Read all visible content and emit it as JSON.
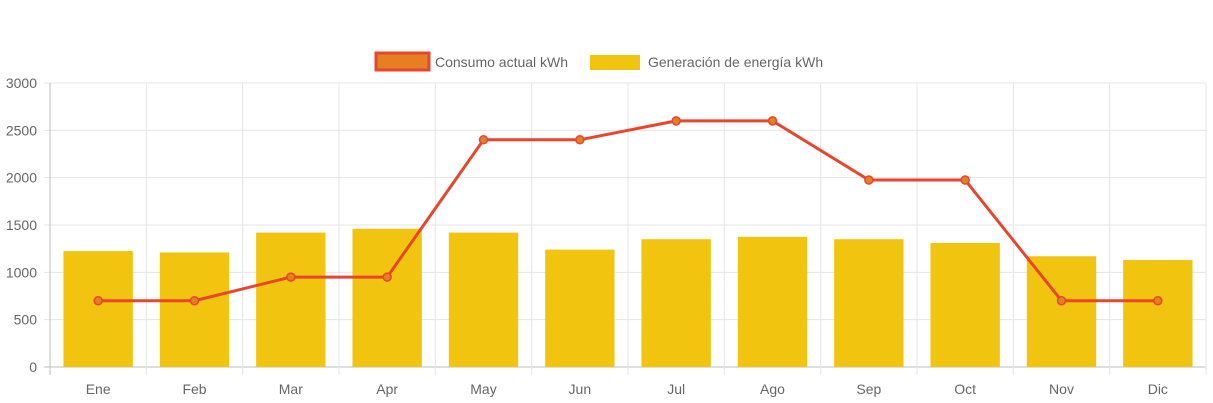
{
  "chart_data": {
    "type": "bar",
    "categories": [
      "Ene",
      "Feb",
      "Mar",
      "Apr",
      "May",
      "Jun",
      "Jul",
      "Ago",
      "Sep",
      "Oct",
      "Nov",
      "Dic"
    ],
    "series": [
      {
        "name": "Consumo actual kWh",
        "type": "line",
        "color": "#e8452c",
        "point_color": "#e67e22",
        "values": [
          700,
          700,
          950,
          950,
          2400,
          2400,
          2600,
          2600,
          1975,
          1975,
          700,
          700
        ]
      },
      {
        "name": "Generación de energía kWh",
        "type": "bar",
        "color": "#f1c40f",
        "values": [
          1225,
          1210,
          1420,
          1460,
          1420,
          1240,
          1350,
          1375,
          1350,
          1310,
          1170,
          1130
        ]
      }
    ],
    "legend": {
      "position": "top",
      "items": [
        {
          "label": "Consumo actual kWh",
          "fill": "#e67e22",
          "stroke": "#e8452c"
        },
        {
          "label": "Generación de energía kWh",
          "fill": "#f1c40f",
          "stroke": "#f1c40f"
        }
      ]
    },
    "y_ticks": [
      "0",
      "500",
      "1000",
      "1500",
      "2000",
      "2500",
      "3000"
    ],
    "ylim": [
      0,
      3000
    ],
    "grid": true,
    "title": "",
    "xlabel": "",
    "ylabel": ""
  }
}
